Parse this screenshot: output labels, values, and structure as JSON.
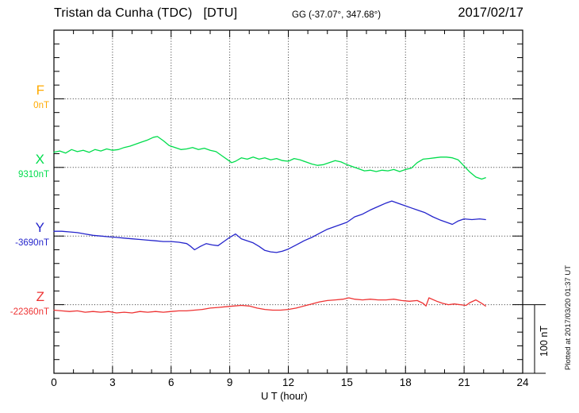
{
  "header": {
    "station_title": "Tristan da Cunha (TDC)",
    "agency": "[DTU]",
    "coordinates": "GG (-37.07°, 347.68°)",
    "date": "2017/02/17"
  },
  "plot": {
    "xlabel": "U T (hour)",
    "scale_bar_label": "100 nT",
    "credit": "Plotted at 2017/03/20 01:37 UT"
  },
  "channels": [
    {
      "id": "F",
      "label": "F",
      "base_label": "0nT",
      "color": "#ffaa00"
    },
    {
      "id": "X",
      "label": "X",
      "base_label": "9310nT",
      "color": "#00dd4c"
    },
    {
      "id": "Y",
      "label": "Y",
      "base_label": "-3690nT",
      "color": "#2525cc"
    },
    {
      "id": "Z",
      "label": "Z",
      "base_label": "-22360nT",
      "color": "#ee3333"
    }
  ],
  "chart_data": {
    "type": "line",
    "title": "Magnetogram Tristan da Cunha (TDC) [DTU] 2017/02/17",
    "xlabel": "U T (hour)",
    "x_range": [
      0,
      24
    ],
    "x_major_ticks": [
      0,
      3,
      6,
      9,
      12,
      15,
      18,
      21,
      24
    ],
    "x_minor_step_hours": 1,
    "nT_per_minor_division": 20,
    "scale_bar_nT": 100,
    "grid": "dotted horizontal line at each channel baseline; dotted vertical lines every 3 hours",
    "legend_position": "left margin (channel letter above baseline, baseline value below)",
    "series": [
      {
        "name": "F",
        "baseline_nT": 0,
        "color": "#ffaa00",
        "samples": []
      },
      {
        "name": "X",
        "baseline_nT": 9310,
        "color": "#00dd4c",
        "samples": [
          [
            0,
            9332
          ],
          [
            0.3,
            9334
          ],
          [
            0.6,
            9331
          ],
          [
            0.9,
            9336
          ],
          [
            1.2,
            9333
          ],
          [
            1.5,
            9335
          ],
          [
            1.8,
            9332
          ],
          [
            2.1,
            9336
          ],
          [
            2.4,
            9334
          ],
          [
            2.7,
            9337
          ],
          [
            3.0,
            9335
          ],
          [
            3.3,
            9336
          ],
          [
            3.6,
            9339
          ],
          [
            3.9,
            9341
          ],
          [
            4.2,
            9344
          ],
          [
            4.5,
            9347
          ],
          [
            4.8,
            9350
          ],
          [
            5.1,
            9354
          ],
          [
            5.3,
            9355
          ],
          [
            5.6,
            9349
          ],
          [
            5.9,
            9342
          ],
          [
            6.2,
            9339
          ],
          [
            6.5,
            9336
          ],
          [
            6.8,
            9337
          ],
          [
            7.1,
            9339
          ],
          [
            7.4,
            9336
          ],
          [
            7.7,
            9338
          ],
          [
            8.0,
            9335
          ],
          [
            8.3,
            9333
          ],
          [
            8.6,
            9327
          ],
          [
            8.9,
            9321
          ],
          [
            9.1,
            9317
          ],
          [
            9.3,
            9319
          ],
          [
            9.6,
            9324
          ],
          [
            9.9,
            9322
          ],
          [
            10.2,
            9325
          ],
          [
            10.5,
            9322
          ],
          [
            10.8,
            9324
          ],
          [
            11.1,
            9321
          ],
          [
            11.4,
            9323
          ],
          [
            11.7,
            9320
          ],
          [
            12.0,
            9319
          ],
          [
            12.3,
            9323
          ],
          [
            12.6,
            9321
          ],
          [
            12.9,
            9318
          ],
          [
            13.2,
            9315
          ],
          [
            13.5,
            9313
          ],
          [
            13.8,
            9314
          ],
          [
            14.1,
            9317
          ],
          [
            14.4,
            9320
          ],
          [
            14.7,
            9318
          ],
          [
            15.0,
            9314
          ],
          [
            15.3,
            9311
          ],
          [
            15.6,
            9308
          ],
          [
            15.9,
            9305
          ],
          [
            16.2,
            9306
          ],
          [
            16.5,
            9304
          ],
          [
            16.8,
            9306
          ],
          [
            17.1,
            9305
          ],
          [
            17.4,
            9307
          ],
          [
            17.7,
            9304
          ],
          [
            18.0,
            9307
          ],
          [
            18.3,
            9309
          ],
          [
            18.6,
            9317
          ],
          [
            18.9,
            9322
          ],
          [
            19.2,
            9323
          ],
          [
            19.5,
            9324
          ],
          [
            19.8,
            9325
          ],
          [
            20.1,
            9325
          ],
          [
            20.4,
            9324
          ],
          [
            20.7,
            9321
          ],
          [
            21.0,
            9312
          ],
          [
            21.3,
            9303
          ],
          [
            21.6,
            9296
          ],
          [
            21.9,
            9293
          ],
          [
            22.1,
            9295
          ]
        ]
      },
      {
        "name": "Y",
        "baseline_nT": -3690,
        "color": "#2525cc",
        "samples": [
          [
            0,
            -3683
          ],
          [
            0.4,
            -3683
          ],
          [
            0.8,
            -3684
          ],
          [
            1.2,
            -3685
          ],
          [
            1.6,
            -3687
          ],
          [
            2.0,
            -3689
          ],
          [
            2.4,
            -3690
          ],
          [
            2.8,
            -3691
          ],
          [
            3.2,
            -3692
          ],
          [
            3.6,
            -3693
          ],
          [
            4.0,
            -3694
          ],
          [
            4.4,
            -3695
          ],
          [
            4.8,
            -3696
          ],
          [
            5.2,
            -3697
          ],
          [
            5.6,
            -3698
          ],
          [
            6.0,
            -3698
          ],
          [
            6.4,
            -3699
          ],
          [
            6.8,
            -3701
          ],
          [
            7.0,
            -3705
          ],
          [
            7.2,
            -3710
          ],
          [
            7.5,
            -3705
          ],
          [
            7.8,
            -3701
          ],
          [
            8.1,
            -3703
          ],
          [
            8.4,
            -3704
          ],
          [
            8.7,
            -3698
          ],
          [
            9.0,
            -3692
          ],
          [
            9.3,
            -3687
          ],
          [
            9.6,
            -3694
          ],
          [
            9.9,
            -3697
          ],
          [
            10.2,
            -3700
          ],
          [
            10.5,
            -3705
          ],
          [
            10.8,
            -3711
          ],
          [
            11.1,
            -3713
          ],
          [
            11.4,
            -3714
          ],
          [
            11.7,
            -3712
          ],
          [
            12.0,
            -3709
          ],
          [
            12.4,
            -3703
          ],
          [
            12.8,
            -3697
          ],
          [
            13.2,
            -3692
          ],
          [
            13.6,
            -3686
          ],
          [
            14.0,
            -3680
          ],
          [
            14.4,
            -3676
          ],
          [
            14.8,
            -3672
          ],
          [
            15.0,
            -3670
          ],
          [
            15.4,
            -3662
          ],
          [
            15.8,
            -3658
          ],
          [
            16.2,
            -3652
          ],
          [
            16.6,
            -3647
          ],
          [
            17.0,
            -3642
          ],
          [
            17.3,
            -3639
          ],
          [
            17.5,
            -3641
          ],
          [
            17.8,
            -3644
          ],
          [
            18.0,
            -3646
          ],
          [
            18.3,
            -3649
          ],
          [
            18.6,
            -3652
          ],
          [
            19.0,
            -3656
          ],
          [
            19.4,
            -3662
          ],
          [
            19.8,
            -3667
          ],
          [
            20.1,
            -3670
          ],
          [
            20.4,
            -3673
          ],
          [
            20.7,
            -3668
          ],
          [
            21.0,
            -3665
          ],
          [
            21.4,
            -3666
          ],
          [
            21.8,
            -3665
          ],
          [
            22.1,
            -3666
          ]
        ]
      },
      {
        "name": "Z",
        "baseline_nT": -22360,
        "color": "#ee3333",
        "samples": [
          [
            0,
            -22368
          ],
          [
            0.4,
            -22369
          ],
          [
            0.8,
            -22370
          ],
          [
            1.2,
            -22369
          ],
          [
            1.6,
            -22371
          ],
          [
            2.0,
            -22370
          ],
          [
            2.4,
            -22371
          ],
          [
            2.8,
            -22370
          ],
          [
            3.2,
            -22372
          ],
          [
            3.6,
            -22371
          ],
          [
            4.0,
            -22372
          ],
          [
            4.4,
            -22370
          ],
          [
            4.8,
            -22371
          ],
          [
            5.2,
            -22370
          ],
          [
            5.6,
            -22371
          ],
          [
            6.0,
            -22370
          ],
          [
            6.4,
            -22369
          ],
          [
            6.8,
            -22369
          ],
          [
            7.2,
            -22368
          ],
          [
            7.6,
            -22367
          ],
          [
            8.0,
            -22365
          ],
          [
            8.4,
            -22364
          ],
          [
            8.8,
            -22363
          ],
          [
            9.2,
            -22362
          ],
          [
            9.6,
            -22361
          ],
          [
            10.0,
            -22362
          ],
          [
            10.4,
            -22365
          ],
          [
            10.8,
            -22367
          ],
          [
            11.2,
            -22368
          ],
          [
            11.6,
            -22368
          ],
          [
            12.0,
            -22367
          ],
          [
            12.4,
            -22365
          ],
          [
            12.8,
            -22362
          ],
          [
            13.2,
            -22359
          ],
          [
            13.6,
            -22356
          ],
          [
            14.0,
            -22354
          ],
          [
            14.4,
            -22353
          ],
          [
            14.8,
            -22352
          ],
          [
            15.1,
            -22350
          ],
          [
            15.4,
            -22352
          ],
          [
            15.8,
            -22353
          ],
          [
            16.2,
            -22352
          ],
          [
            16.6,
            -22353
          ],
          [
            17.0,
            -22353
          ],
          [
            17.4,
            -22352
          ],
          [
            17.8,
            -22354
          ],
          [
            18.2,
            -22355
          ],
          [
            18.6,
            -22354
          ],
          [
            18.9,
            -22358
          ],
          [
            19.05,
            -22362
          ],
          [
            19.2,
            -22350
          ],
          [
            19.6,
            -22355
          ],
          [
            19.9,
            -22358
          ],
          [
            20.2,
            -22360
          ],
          [
            20.5,
            -22359
          ],
          [
            20.8,
            -22360
          ],
          [
            21.1,
            -22361
          ],
          [
            21.3,
            -22357
          ],
          [
            21.6,
            -22353
          ],
          [
            21.9,
            -22358
          ],
          [
            22.1,
            -22362
          ]
        ]
      }
    ]
  }
}
